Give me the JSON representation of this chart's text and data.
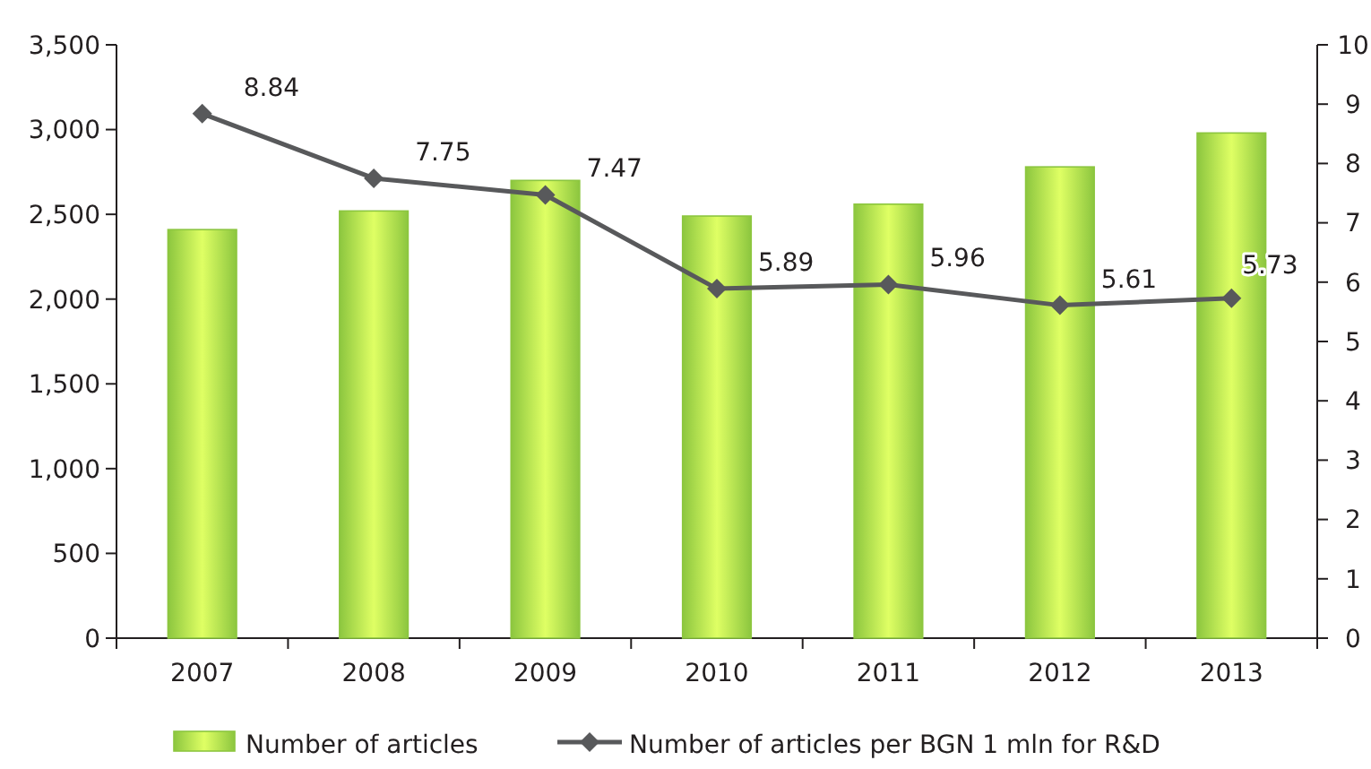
{
  "chart_data": {
    "type": "bar",
    "categories": [
      "2007",
      "2008",
      "2009",
      "2010",
      "2011",
      "2012",
      "2013"
    ],
    "series": [
      {
        "name": "Number of articles",
        "color": "#8cc63f",
        "values": [
          2410,
          2520,
          2700,
          2490,
          2560,
          2780,
          2980
        ]
      },
      {
        "name": "Number of articles per BGN 1 mln for R&D",
        "type": "line",
        "axis": "y2",
        "color": "#58595b",
        "values": [
          8.84,
          7.75,
          7.47,
          5.89,
          5.96,
          5.61,
          5.73
        ],
        "value_labels": [
          "8.84",
          "7.75",
          "7.47",
          "5.89",
          "5.96",
          "5.61",
          "5.73"
        ]
      }
    ],
    "ylim": [
      0,
      3500
    ],
    "yticks": [
      {
        "value": 0,
        "label": "0"
      },
      {
        "value": 500,
        "label": "500"
      },
      {
        "value": 1000,
        "label": "1,000"
      },
      {
        "value": 1500,
        "label": "1,500"
      },
      {
        "value": 2000,
        "label": "2,000"
      },
      {
        "value": 2500,
        "label": "2,500"
      },
      {
        "value": 3000,
        "label": "3,000"
      },
      {
        "value": 3500,
        "label": "3,500"
      }
    ],
    "y2lim": [
      0,
      10
    ],
    "y2ticks": [
      0,
      1,
      2,
      3,
      4,
      5,
      6,
      7,
      8,
      9,
      10
    ],
    "marker": "diamond",
    "legend": "bottom",
    "grid": false
  }
}
